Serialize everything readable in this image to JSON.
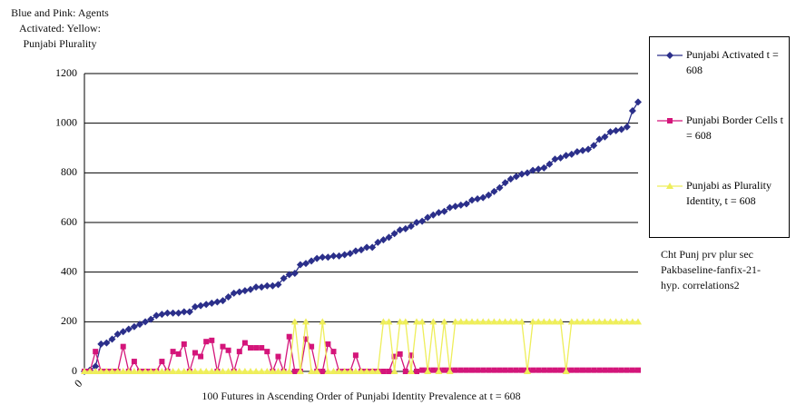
{
  "chart_data": {
    "type": "line",
    "title": "Blue and Pink: Agents Activated: Yellow: Punjabi Plurality",
    "x_label": "100 Futures in Ascending Order of Punjabi Identity Prevalence at t = 608",
    "note": "Cht Punj prv plur sec Pakbaseline-fanfix-21-hyp. correlations2",
    "categories": [
      "0",
      null,
      null,
      null,
      null,
      null,
      null,
      null,
      null,
      null,
      null,
      null,
      null,
      null,
      null,
      null,
      null,
      null,
      null,
      null,
      null,
      null,
      null,
      null,
      null,
      null,
      null,
      null,
      null,
      null,
      null,
      null,
      null,
      null,
      null,
      null,
      null,
      null,
      null,
      null,
      null,
      null,
      null,
      null,
      null,
      null,
      null,
      null,
      null,
      null,
      null,
      null,
      null,
      null,
      null,
      null,
      null,
      null,
      null,
      null,
      null,
      null,
      null,
      null,
      null,
      null,
      null,
      null,
      null,
      null,
      null,
      null,
      null,
      null,
      null,
      null,
      null,
      null,
      null,
      null,
      null,
      null,
      null,
      null,
      null,
      null,
      null,
      null,
      null,
      null,
      null,
      null,
      null,
      null,
      null,
      null,
      null,
      null,
      null,
      null,
      null
    ],
    "ylim": [
      0,
      1200
    ],
    "yticks": [
      0,
      200,
      400,
      600,
      800,
      1000,
      1200
    ],
    "grid": true,
    "series": [
      {
        "name": "Punjabi Activated t = 608",
        "color": "#2b2f8a",
        "marker": "diamond",
        "values": [
          0,
          5,
          20,
          110,
          115,
          130,
          150,
          160,
          170,
          180,
          190,
          200,
          210,
          225,
          230,
          235,
          235,
          235,
          240,
          240,
          260,
          265,
          270,
          275,
          280,
          285,
          300,
          315,
          320,
          325,
          330,
          340,
          340,
          345,
          345,
          350,
          375,
          390,
          395,
          430,
          435,
          445,
          455,
          460,
          460,
          465,
          465,
          470,
          475,
          485,
          490,
          500,
          500,
          520,
          530,
          540,
          555,
          570,
          575,
          585,
          600,
          605,
          620,
          630,
          640,
          645,
          660,
          665,
          670,
          675,
          690,
          695,
          700,
          710,
          725,
          740,
          760,
          775,
          785,
          795,
          800,
          810,
          815,
          820,
          835,
          855,
          860,
          870,
          875,
          885,
          890,
          895,
          910,
          935,
          945,
          965,
          970,
          975,
          985,
          1050,
          1085
        ]
      },
      {
        "name": "Punjabi Border Cells t = 608",
        "color": "#d4157a",
        "marker": "square",
        "values": [
          0,
          0,
          80,
          0,
          0,
          0,
          0,
          100,
          0,
          40,
          0,
          0,
          0,
          0,
          40,
          0,
          80,
          70,
          110,
          0,
          75,
          60,
          120,
          125,
          0,
          100,
          85,
          0,
          80,
          115,
          95,
          95,
          95,
          80,
          0,
          60,
          0,
          140,
          0,
          0,
          130,
          100,
          0,
          0,
          110,
          80,
          0,
          0,
          0,
          65,
          0,
          0,
          0,
          0,
          0,
          0,
          60,
          70,
          0,
          65,
          0,
          5,
          5,
          5,
          5,
          5,
          5,
          5,
          5,
          5,
          5,
          5,
          5,
          5,
          5,
          5,
          5,
          5,
          5,
          5,
          5,
          5,
          5,
          5,
          5,
          5,
          5,
          5,
          5,
          5,
          5,
          5,
          5,
          5,
          5,
          5,
          5,
          5,
          5,
          5,
          5
        ]
      },
      {
        "name": "Punjabi as Plurality Identity, t = 608",
        "color": "#eeee5a",
        "marker": "triangle",
        "values": [
          0,
          0,
          0,
          0,
          0,
          0,
          0,
          0,
          0,
          0,
          0,
          0,
          0,
          0,
          0,
          0,
          0,
          0,
          0,
          0,
          0,
          0,
          0,
          0,
          0,
          0,
          0,
          0,
          0,
          0,
          0,
          0,
          0,
          0,
          0,
          0,
          0,
          0,
          200,
          0,
          200,
          0,
          0,
          200,
          0,
          0,
          0,
          0,
          0,
          0,
          0,
          0,
          0,
          0,
          200,
          200,
          0,
          200,
          200,
          0,
          200,
          200,
          0,
          200,
          0,
          200,
          0,
          200,
          200,
          200,
          200,
          200,
          200,
          200,
          200,
          200,
          200,
          200,
          200,
          200,
          0,
          200,
          200,
          200,
          200,
          200,
          200,
          0,
          200,
          200,
          200,
          200,
          200,
          200,
          200,
          200,
          200,
          200,
          200,
          200,
          200
        ]
      }
    ]
  }
}
